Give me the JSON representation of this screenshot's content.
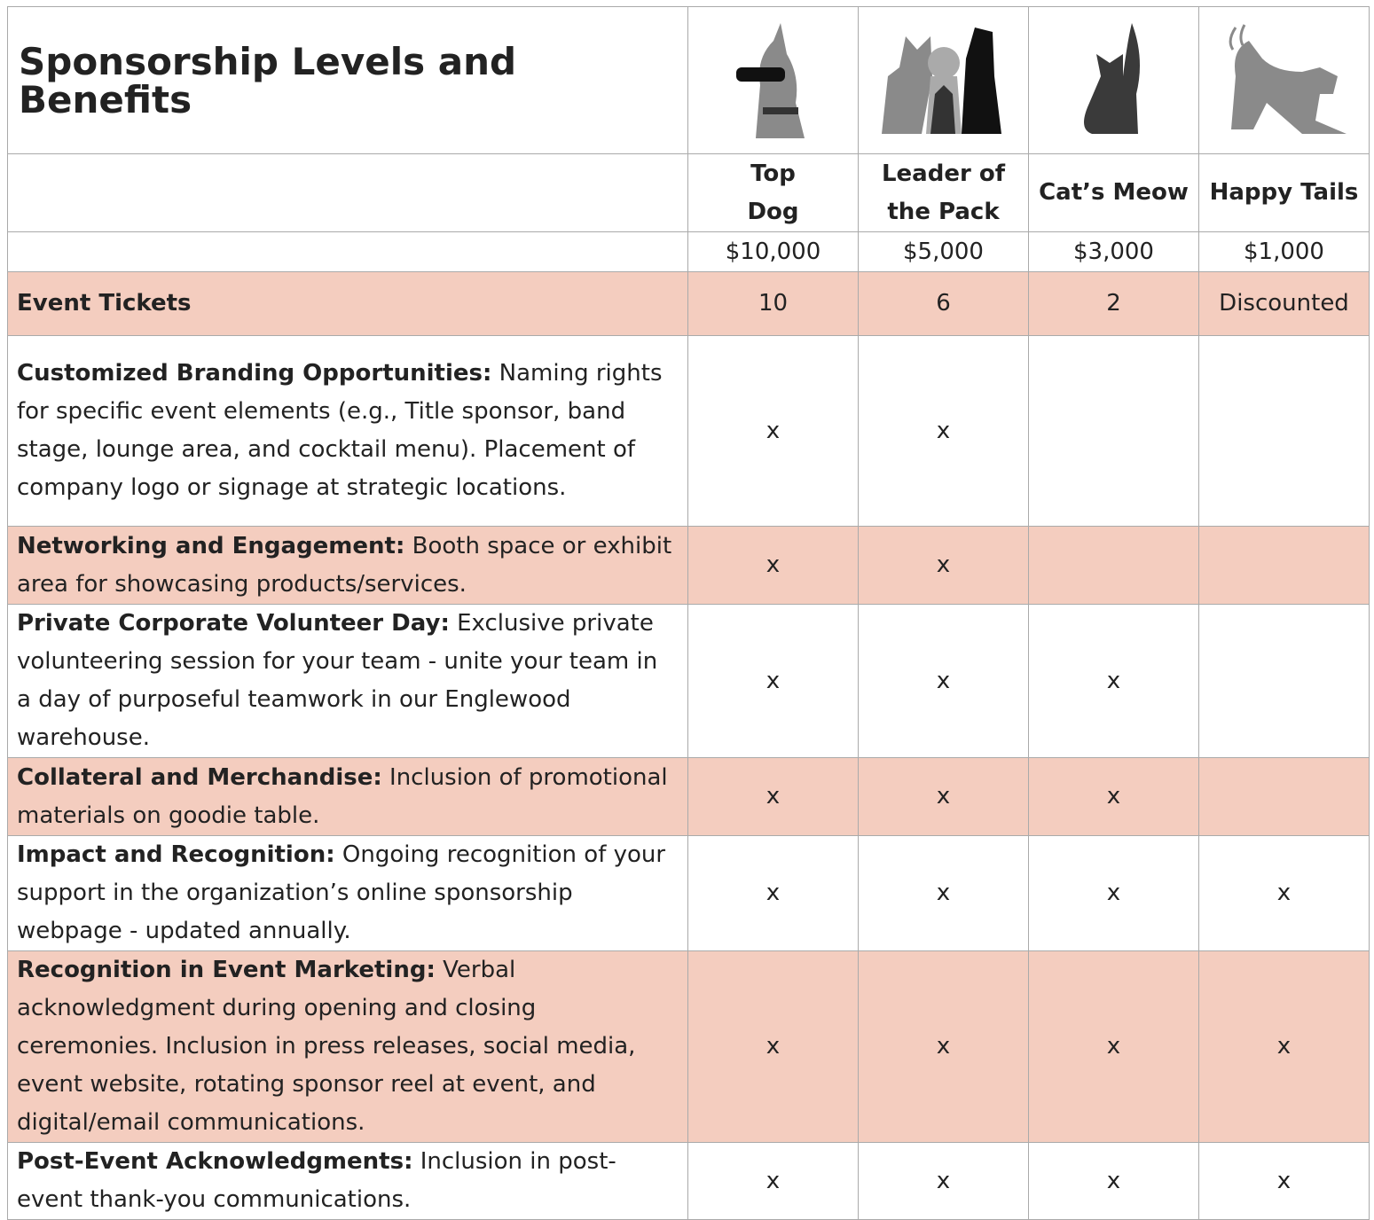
{
  "header": {
    "title": "Sponsorship Levels and Benefits"
  },
  "levels": [
    {
      "name": "Top Dog",
      "price": "$10,000"
    },
    {
      "name": "Leader of the Pack",
      "price": "$5,000"
    },
    {
      "name": "Cat’s Meow",
      "price": "$3,000"
    },
    {
      "name": "Happy Tails",
      "price": "$1,000"
    }
  ],
  "rows": [
    {
      "label": "Event Tickets",
      "cells": [
        "10",
        "6",
        "2",
        "Discounted"
      ]
    },
    {
      "label": "Customized Branding Opportunities:",
      "description": "Naming rights for specific event elements (e.g., Title sponsor, band stage, lounge area, and cocktail menu). Placement of company logo or signage at strategic locations.",
      "cells": [
        "x",
        "x",
        null,
        null
      ]
    },
    {
      "label": "Networking and Engagement:",
      "description": "Booth space or exhibit area for showcasing products/services.",
      "cells": [
        "x",
        "x",
        null,
        null
      ]
    },
    {
      "label": "Private Corporate Volunteer Day:",
      "description": "Exclusive private volunteering session for your team - unite your team in a day of purposeful teamwork in our Englewood warehouse.",
      "cells": [
        "x",
        "x",
        "x",
        null
      ]
    },
    {
      "label": "Collateral and Merchandise:",
      "description": "Inclusion of promotional materials on goodie table.",
      "cells": [
        "x",
        "x",
        "x",
        null
      ]
    },
    {
      "label": "Impact and Recognition:",
      "description": "Ongoing recognition of your support in the organization’s online sponsorship webpage - updated annually.",
      "cells": [
        "x",
        "x",
        "x",
        "x"
      ]
    },
    {
      "label": "Recognition in Event Marketing:",
      "description": "Verbal acknowledgment during opening and closing ceremonies. Inclusion in press releases, social media, event website, rotating sponsor reel at event, and digital/email communications.",
      "cells": [
        "x",
        "x",
        "x",
        "x"
      ]
    },
    {
      "label": "Post-Event Acknowledgments:",
      "description": "Inclusion in post-event thank-you communications.",
      "cells": [
        "x",
        "x",
        "x",
        "x"
      ]
    }
  ]
}
